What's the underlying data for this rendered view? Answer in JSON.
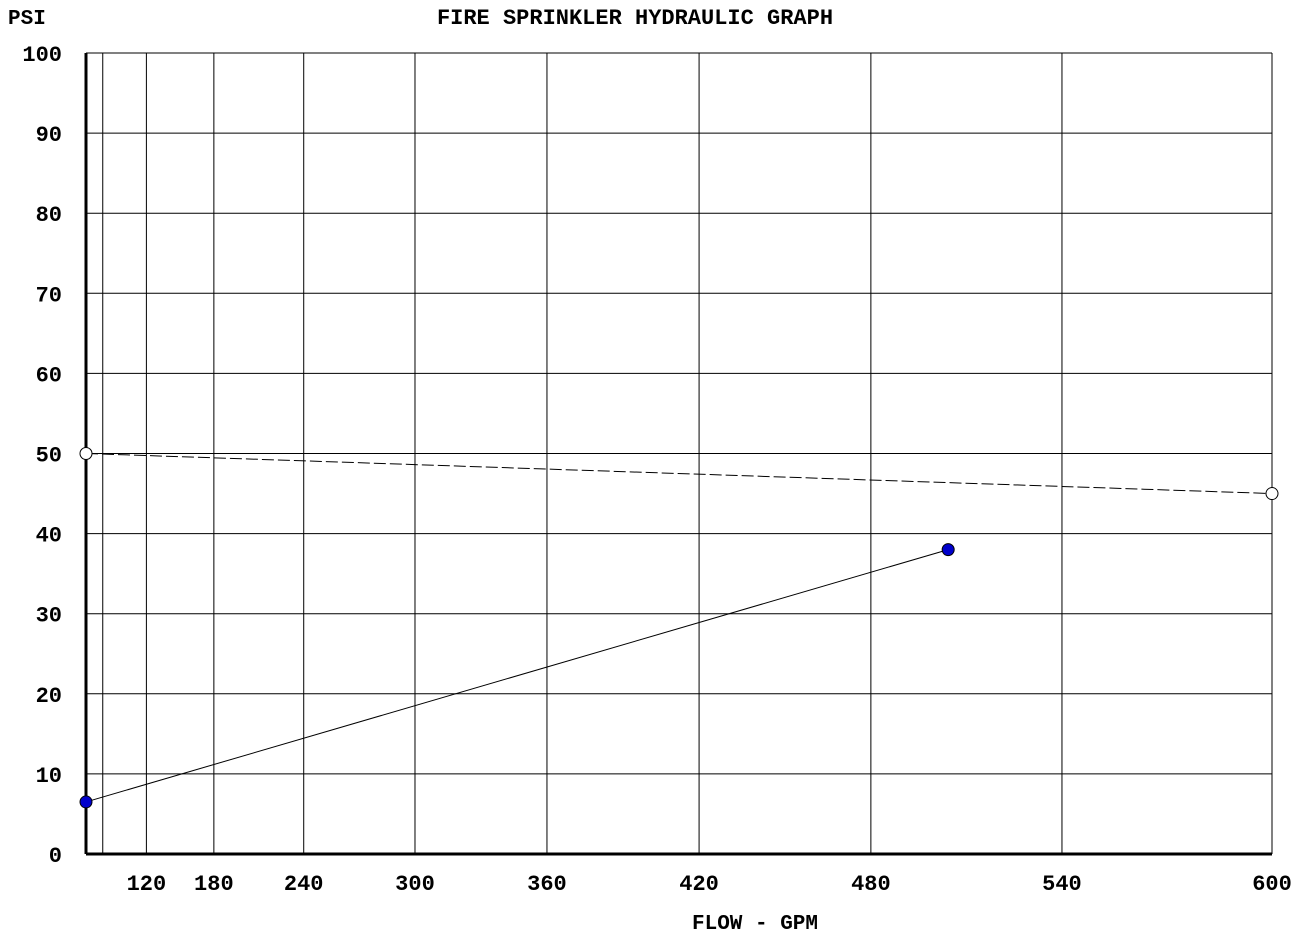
{
  "chart_data": {
    "type": "line",
    "title": "FIRE SPRINKLER HYDRAULIC GRAPH",
    "ylabel": "PSI",
    "xlabel": "FLOW - GPM",
    "scale": "Q^1.85",
    "xlim": [
      0,
      600
    ],
    "ylim": [
      0,
      100
    ],
    "x_ticks": [
      120,
      180,
      240,
      300,
      360,
      420,
      480,
      540,
      600
    ],
    "y_ticks": [
      0,
      10,
      20,
      30,
      40,
      50,
      60,
      70,
      80,
      90,
      100
    ],
    "series": [
      {
        "style": "dashed",
        "marker": "open-circle",
        "color": "#000000",
        "points": [
          {
            "x": 0,
            "y": 50
          },
          {
            "x": 600,
            "y": 45
          }
        ]
      },
      {
        "style": "solid",
        "marker": "filled-circle",
        "color": "#0000cc",
        "points": [
          {
            "x": 0,
            "y": 6.5
          },
          {
            "x": 505,
            "y": 38
          }
        ]
      }
    ],
    "grid": true
  }
}
